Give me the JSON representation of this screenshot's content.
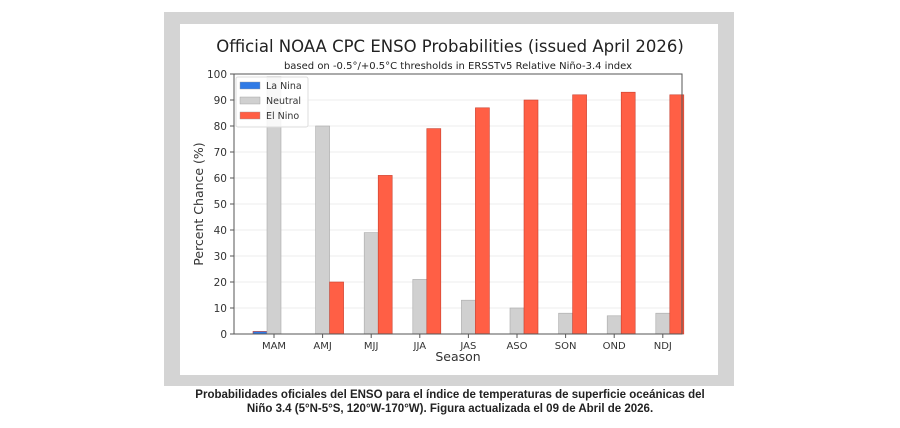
{
  "chart_data": {
    "type": "bar",
    "title": "Official NOAA CPC ENSO Probabilities (issued April 2026)",
    "subtitle": "based on -0.5°/+0.5°C thresholds in ERSSTv5 Relative Niño-3.4 index",
    "xlabel": "Season",
    "ylabel": "Percent Chance (%)",
    "ylim": [
      0,
      100
    ],
    "yticks": [
      0,
      10,
      20,
      30,
      40,
      50,
      60,
      70,
      80,
      90,
      100
    ],
    "grid": true,
    "legend_placement": "top-left",
    "categories": [
      "MAM",
      "AMJ",
      "MJJ",
      "JJA",
      "JAS",
      "ASO",
      "SON",
      "OND",
      "NDJ"
    ],
    "series": [
      {
        "name": "La Nina",
        "color": "#2f7ae5",
        "values": [
          1,
          0,
          0,
          0,
          0,
          0,
          0,
          0,
          0
        ]
      },
      {
        "name": "Neutral",
        "color": "#d0d0d0",
        "values": [
          99,
          80,
          39,
          21,
          13,
          10,
          8,
          7,
          8
        ]
      },
      {
        "name": "El Nino",
        "color": "#ff5f45",
        "values": [
          0,
          20,
          61,
          79,
          87,
          90,
          92,
          93,
          92
        ]
      }
    ]
  },
  "caption": {
    "line1": "Probabilidades oficiales del ENSO para el índice de temperaturas de superficie oceánicas del",
    "line2": "Niño 3.4 (5°N-5°S, 120°W-170°W). Figura actualizada el 09 de Abril de 2026."
  }
}
